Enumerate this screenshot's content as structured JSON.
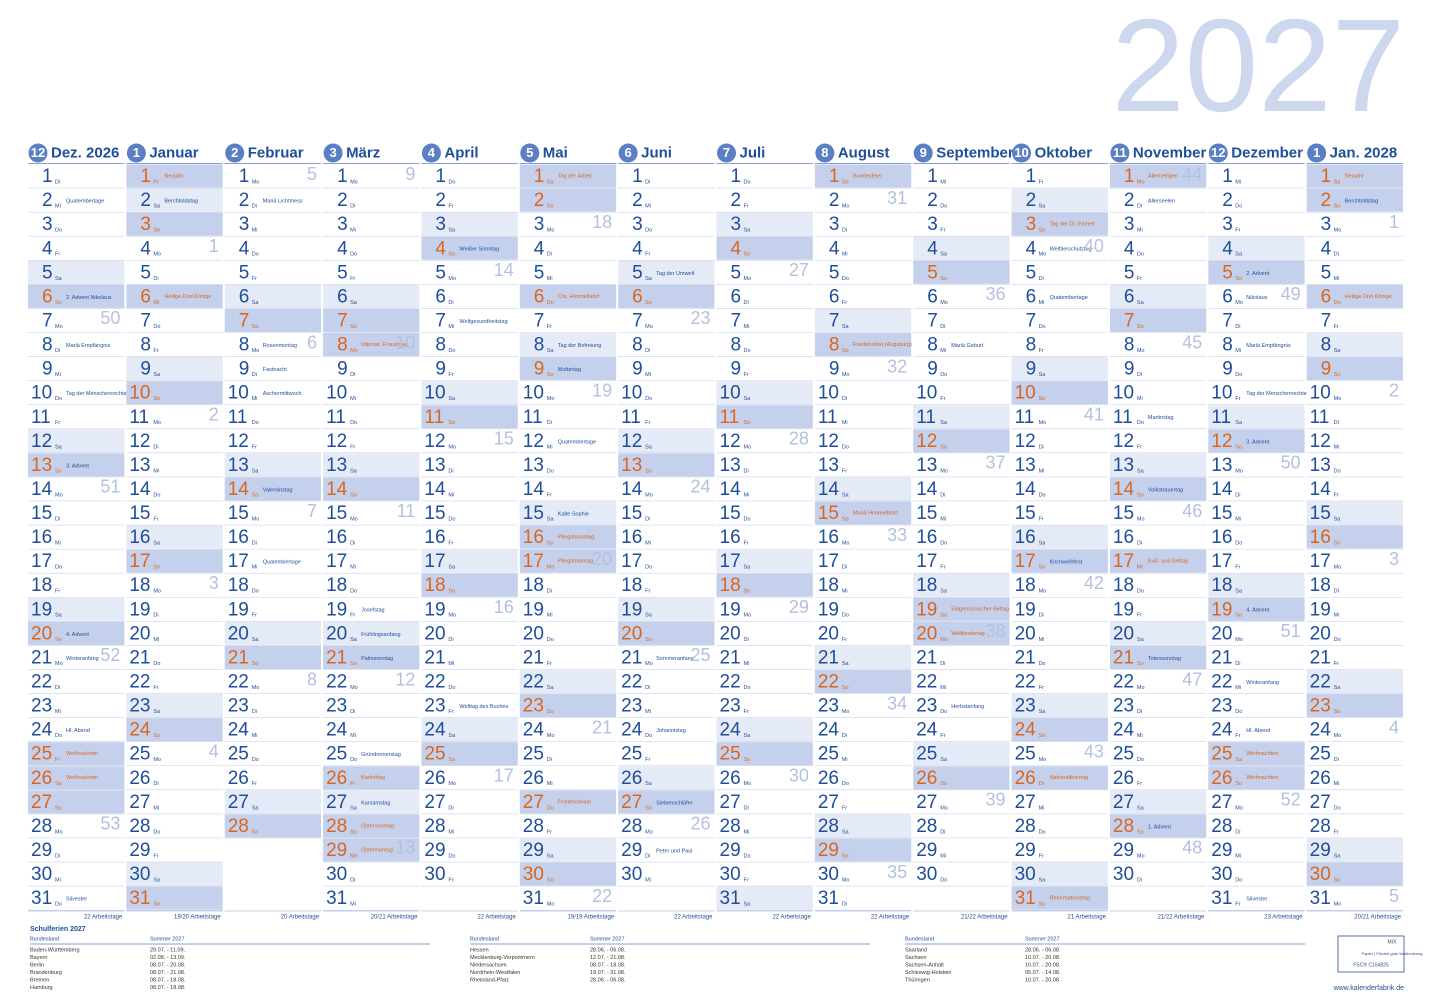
{
  "title": "2027",
  "weekdays": [
    "Mo",
    "Di",
    "Mi",
    "Do",
    "Fr",
    "Sa",
    "So"
  ],
  "day_numbers": [
    1,
    2,
    3,
    4,
    5,
    6,
    7,
    8,
    9,
    10,
    11,
    12,
    13,
    14,
    15,
    16,
    17,
    18,
    19,
    20,
    21,
    22,
    23,
    24,
    25,
    26,
    27,
    28,
    29,
    30,
    31
  ],
  "months": [
    {
      "num": 12,
      "name": "Dez. 2026",
      "days": 31,
      "weeks": [
        [
          7,
          50
        ],
        [
          14,
          51
        ],
        [
          21,
          52
        ],
        [
          28,
          53
        ]
      ],
      "holidays": [
        [
          25,
          "Weihnachten"
        ],
        [
          26,
          "Weihnachten"
        ]
      ],
      "notes": [
        [
          2,
          "Quatembertage"
        ],
        [
          6,
          "2. Advent Nikolaus"
        ],
        [
          8,
          "Mariä Empfängnis"
        ],
        [
          10,
          "Tag der Menschenrechte"
        ],
        [
          13,
          "3. Advent"
        ],
        [
          20,
          "4. Advent"
        ],
        [
          21,
          "Winteranfang"
        ],
        [
          24,
          "Hl. Abend"
        ],
        [
          31,
          "Silvester"
        ]
      ],
      "workdays": "22 Arbeitstage"
    },
    {
      "num": 1,
      "name": "Januar",
      "days": 31,
      "weeks": [
        [
          4,
          1
        ],
        [
          11,
          2
        ],
        [
          18,
          3
        ],
        [
          25,
          4
        ]
      ],
      "holidays": [
        [
          1,
          "Neujahr"
        ],
        [
          6,
          "Heilige Drei Könige"
        ]
      ],
      "notes": [
        [
          2,
          "Berchtoldstag"
        ]
      ],
      "workdays": "19/20 Arbeitstage"
    },
    {
      "num": 2,
      "name": "Februar",
      "days": 28,
      "weeks": [
        [
          1,
          5
        ],
        [
          8,
          6
        ],
        [
          15,
          7
        ],
        [
          22,
          8
        ]
      ],
      "holidays": [],
      "notes": [
        [
          2,
          "Mariä Lichtmess"
        ],
        [
          8,
          "Rosenmontag"
        ],
        [
          9,
          "Fastnacht"
        ],
        [
          10,
          "Aschermittwoch"
        ],
        [
          14,
          "Valentinstag"
        ],
        [
          17,
          "Quatembertage"
        ]
      ],
      "workdays": "20 Arbeitstage"
    },
    {
      "num": 3,
      "name": "März",
      "days": 31,
      "weeks": [
        [
          1,
          9
        ],
        [
          8,
          10
        ],
        [
          15,
          11
        ],
        [
          22,
          12
        ],
        [
          29,
          13
        ]
      ],
      "holidays": [
        [
          8,
          "Internat. Frauentag"
        ],
        [
          26,
          "Karfreitag"
        ],
        [
          28,
          "Ostersonntag"
        ],
        [
          29,
          "Ostermontag"
        ]
      ],
      "notes": [
        [
          19,
          "Josefstag"
        ],
        [
          20,
          "Frühlingsanfang"
        ],
        [
          21,
          "Palmsonntag"
        ],
        [
          25,
          "Gründonnerstag"
        ],
        [
          27,
          "Karsamstag"
        ]
      ],
      "workdays": "20/21 Arbeitstage"
    },
    {
      "num": 4,
      "name": "April",
      "days": 30,
      "weeks": [
        [
          5,
          14
        ],
        [
          12,
          15
        ],
        [
          19,
          16
        ],
        [
          26,
          17
        ]
      ],
      "holidays": [],
      "notes": [
        [
          4,
          "Weißer Sonntag"
        ],
        [
          7,
          "Weltgesundheitstag"
        ],
        [
          23,
          "Welttag des Buches"
        ]
      ],
      "workdays": "22 Arbeitstage"
    },
    {
      "num": 5,
      "name": "Mai",
      "days": 31,
      "weeks": [
        [
          3,
          18
        ],
        [
          10,
          19
        ],
        [
          17,
          20
        ],
        [
          24,
          21
        ],
        [
          31,
          22
        ]
      ],
      "holidays": [
        [
          1,
          "Tag der Arbeit"
        ],
        [
          6,
          "Chr. Himmelfahrt"
        ],
        [
          16,
          "Pfingstsonntag"
        ],
        [
          17,
          "Pfingstmontag"
        ],
        [
          27,
          "Fronleichnam"
        ]
      ],
      "notes": [
        [
          8,
          "Tag der Befreiung"
        ],
        [
          9,
          "Muttertag"
        ],
        [
          12,
          "Quatembertage"
        ],
        [
          15,
          "Kalte Sophie"
        ]
      ],
      "workdays": "19/19 Arbeitstage"
    },
    {
      "num": 6,
      "name": "Juni",
      "days": 30,
      "weeks": [
        [
          7,
          23
        ],
        [
          14,
          24
        ],
        [
          21,
          25
        ],
        [
          28,
          26
        ]
      ],
      "holidays": [],
      "notes": [
        [
          5,
          "Tag der Umwelt"
        ],
        [
          21,
          "Sommeranfang"
        ],
        [
          24,
          "Johannistag"
        ],
        [
          27,
          "Siebenschläfer"
        ],
        [
          29,
          "Peter und Paul"
        ]
      ],
      "workdays": "22 Arbeitstage"
    },
    {
      "num": 7,
      "name": "Juli",
      "days": 31,
      "weeks": [
        [
          5,
          27
        ],
        [
          12,
          28
        ],
        [
          19,
          29
        ],
        [
          26,
          30
        ]
      ],
      "holidays": [],
      "notes": [],
      "workdays": "22 Arbeitstage"
    },
    {
      "num": 8,
      "name": "August",
      "days": 31,
      "weeks": [
        [
          2,
          31
        ],
        [
          9,
          32
        ],
        [
          16,
          33
        ],
        [
          23,
          34
        ],
        [
          30,
          35
        ]
      ],
      "holidays": [
        [
          1,
          "Bundesfeier"
        ],
        [
          8,
          "Friedensfest (Augsburg)"
        ],
        [
          15,
          "Mariä Himmelfahrt"
        ]
      ],
      "notes": [],
      "workdays": "22 Arbeitstage"
    },
    {
      "num": 9,
      "name": "September",
      "days": 30,
      "weeks": [
        [
          6,
          36
        ],
        [
          13,
          37
        ],
        [
          20,
          38
        ],
        [
          27,
          39
        ]
      ],
      "holidays": [
        [
          19,
          "Eidgenössischer Bettag"
        ],
        [
          20,
          "Weltkindertag"
        ]
      ],
      "notes": [
        [
          8,
          "Mariä Geburt"
        ],
        [
          23,
          "Herbstanfang"
        ]
      ],
      "workdays": "21/22 Arbeitstage"
    },
    {
      "num": 10,
      "name": "Oktober",
      "days": 31,
      "weeks": [
        [
          4,
          40
        ],
        [
          11,
          41
        ],
        [
          18,
          42
        ],
        [
          25,
          43
        ]
      ],
      "holidays": [
        [
          3,
          "Tag der Dt. Einheit"
        ],
        [
          26,
          "Nationalfeiertag"
        ],
        [
          31,
          "Reformationstag"
        ]
      ],
      "notes": [
        [
          4,
          "Welttierschutztag"
        ],
        [
          6,
          "Quatembertage"
        ],
        [
          17,
          "Kirchweihfest"
        ]
      ],
      "workdays": "21 Arbeitstage"
    },
    {
      "num": 11,
      "name": "November",
      "days": 30,
      "weeks": [
        [
          1,
          44
        ],
        [
          8,
          45
        ],
        [
          15,
          46
        ],
        [
          22,
          47
        ],
        [
          29,
          48
        ]
      ],
      "holidays": [
        [
          1,
          "Allerheiligen"
        ],
        [
          17,
          "Buß- und Bettag"
        ]
      ],
      "notes": [
        [
          2,
          "Allerseelen"
        ],
        [
          11,
          "Martinstag"
        ],
        [
          14,
          "Volkstrauertag"
        ],
        [
          21,
          "Totensonntag"
        ],
        [
          28,
          "1. Advent"
        ]
      ],
      "workdays": "21/22 Arbeitstage"
    },
    {
      "num": 12,
      "name": "Dezember",
      "days": 31,
      "weeks": [
        [
          6,
          49
        ],
        [
          13,
          50
        ],
        [
          20,
          51
        ],
        [
          27,
          52
        ]
      ],
      "holidays": [
        [
          25,
          "Weihnachten"
        ],
        [
          26,
          "Weihnachten"
        ]
      ],
      "notes": [
        [
          5,
          "2. Advent"
        ],
        [
          6,
          "Nikolaus"
        ],
        [
          8,
          "Mariä Empfängnis"
        ],
        [
          10,
          "Tag der Menschenrechte"
        ],
        [
          12,
          "3. Advent"
        ],
        [
          19,
          "4. Advent"
        ],
        [
          22,
          "Winteranfang"
        ],
        [
          24,
          "Hl. Abend"
        ],
        [
          31,
          "Silvester"
        ]
      ],
      "workdays": "23 Arbeitstage"
    },
    {
      "num": 1,
      "name": "Jan. 2028",
      "days": 31,
      "weeks": [
        [
          3,
          1
        ],
        [
          10,
          2
        ],
        [
          17,
          3
        ],
        [
          24,
          4
        ],
        [
          31,
          5
        ]
      ],
      "holidays": [
        [
          1,
          "Neujahr"
        ],
        [
          6,
          "Heilige Drei Könige"
        ]
      ],
      "notes": [
        [
          2,
          "Berchtoldstag"
        ]
      ],
      "workdays": "20/21 Arbeitstage"
    }
  ],
  "school_holidays": {
    "title": "Schulferien 2027",
    "columns": [
      "Bundesland",
      "Sommer 2027"
    ],
    "rows": [
      [
        "Baden-Württemberg",
        "29.07. - 11.09."
      ],
      [
        "Bayern",
        "02.08. - 13.09."
      ],
      [
        "Berlin",
        "08.07. - 20.08."
      ],
      [
        "Brandenburg",
        "08.07. - 21.08."
      ],
      [
        "Bremen",
        "08.07. - 18.08."
      ],
      [
        "Hamburg",
        "08.07. - 18.08."
      ],
      [
        "Hessen",
        "28.06. - 06.08."
      ],
      [
        "Mecklenburg-Vorpommern",
        "12.07. - 21.08."
      ],
      [
        "Niedersachsen",
        "08.07. - 18.08."
      ],
      [
        "Nordrhein-Westfalen",
        "19.07. - 31.08."
      ],
      [
        "Rheinland-Pfalz",
        "28.06. - 06.08."
      ],
      [
        "Saarland",
        "28.06. - 06.08."
      ],
      [
        "Sachsen",
        "10.07. - 20.08."
      ],
      [
        "Sachsen-Anhalt",
        "10.07. - 20.08."
      ],
      [
        "Schleswig-Holstein",
        "05.07. - 14.08."
      ],
      [
        "Thüringen",
        "10.07. - 20.08."
      ]
    ]
  },
  "footer": {
    "fsc_mix": "MIX",
    "fsc_text": "Papier | Fördert gute Waldnutzung",
    "fsc_code": "FSC® C104825",
    "url": "www.kalenderfabrik.de"
  }
}
